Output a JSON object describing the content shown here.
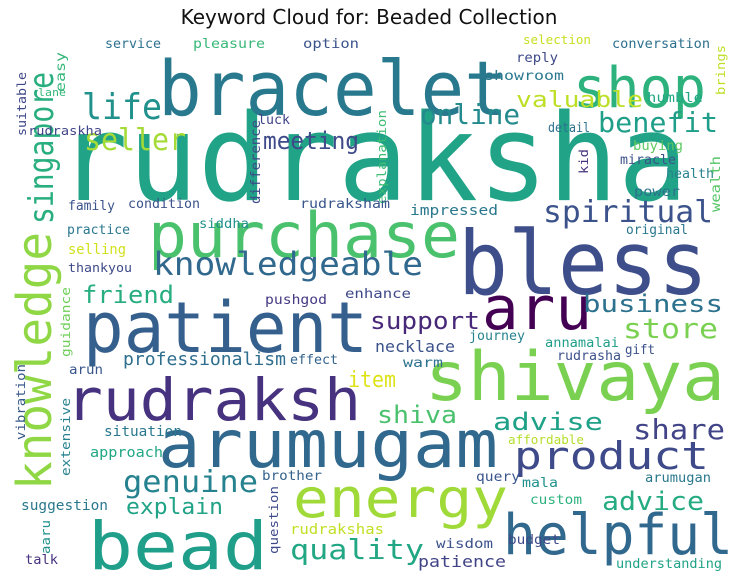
{
  "title": "Keyword Cloud for: Beaded Collection",
  "words": [
    {
      "text": "rudraksha",
      "color": "#20a386"
    },
    {
      "text": "bracelet",
      "color": "#29798e"
    },
    {
      "text": "shop",
      "color": "#2db27d"
    },
    {
      "text": "life",
      "color": "#21918c"
    },
    {
      "text": "seller",
      "color": "#a5db36"
    },
    {
      "text": "meeting",
      "color": "#3e4a89"
    },
    {
      "text": "online",
      "color": "#238a8d"
    },
    {
      "text": "valuable",
      "color": "#bddf26"
    },
    {
      "text": "benefit",
      "color": "#1f9e89"
    },
    {
      "text": "singapore",
      "color": "#29af7f"
    },
    {
      "text": "purchase",
      "color": "#4ac16d"
    },
    {
      "text": "spiritual",
      "color": "#3b528b"
    },
    {
      "text": "bless",
      "color": "#3d4e8a"
    },
    {
      "text": "knowledge",
      "color": "#8fd744"
    },
    {
      "text": "knowledgeable",
      "color": "#31688e"
    },
    {
      "text": "aru",
      "color": "#440154"
    },
    {
      "text": "business",
      "color": "#2c728e"
    },
    {
      "text": "patient",
      "color": "#355f8d"
    },
    {
      "text": "friend",
      "color": "#27ad81"
    },
    {
      "text": "support",
      "color": "#482878"
    },
    {
      "text": "store",
      "color": "#7ad151"
    },
    {
      "text": "shivaya",
      "color": "#7ad151"
    },
    {
      "text": "professionalism",
      "color": "#2e6e8e"
    },
    {
      "text": "rudraksh",
      "color": "#46327e"
    },
    {
      "text": "item",
      "color": "#dde318"
    },
    {
      "text": "shiva",
      "color": "#4ac16d"
    },
    {
      "text": "advise",
      "color": "#1fa188"
    },
    {
      "text": "share",
      "color": "#414487"
    },
    {
      "text": "arumugam",
      "color": "#31688e"
    },
    {
      "text": "product",
      "color": "#3e4a89"
    },
    {
      "text": "genuine",
      "color": "#26828e"
    },
    {
      "text": "explain",
      "color": "#20a386"
    },
    {
      "text": "energy",
      "color": "#a0da39"
    },
    {
      "text": "advice",
      "color": "#25ab82"
    },
    {
      "text": "bead",
      "color": "#1f9e89"
    },
    {
      "text": "quality",
      "color": "#22a785"
    },
    {
      "text": "helpful",
      "color": "#31688e"
    },
    {
      "text": "service",
      "color": "#2c728e"
    },
    {
      "text": "pleasure",
      "color": "#37b878"
    },
    {
      "text": "option",
      "color": "#3b528b"
    },
    {
      "text": "selection",
      "color": "#c8e020"
    },
    {
      "text": "conversation",
      "color": "#2d708e"
    },
    {
      "text": "easy",
      "color": "#35b779"
    },
    {
      "text": "brings",
      "color": "#bddf26"
    },
    {
      "text": "reply",
      "color": "#3e4a89"
    },
    {
      "text": "showroom",
      "color": "#2a788e"
    },
    {
      "text": "humble",
      "color": "#22a785"
    },
    {
      "text": "lane",
      "color": "#35b779"
    },
    {
      "text": "suitable",
      "color": "#3f4788"
    },
    {
      "text": "rudraskha",
      "color": "#414487"
    },
    {
      "text": "luck",
      "color": "#414487"
    },
    {
      "text": "detail",
      "color": "#2c728e"
    },
    {
      "text": "kid",
      "color": "#46327e"
    },
    {
      "text": "buying",
      "color": "#5ec962"
    },
    {
      "text": "miracle",
      "color": "#3b528b"
    },
    {
      "text": "health",
      "color": "#26828e"
    },
    {
      "text": "power",
      "color": "#2c728e"
    },
    {
      "text": "difference",
      "color": "#3e4a89"
    },
    {
      "text": "explanation",
      "color": "#3dbc74"
    },
    {
      "text": "wealth",
      "color": "#56c667"
    },
    {
      "text": "family",
      "color": "#3a548c"
    },
    {
      "text": "condition",
      "color": "#3b528b"
    },
    {
      "text": "rudraksham",
      "color": "#39558c"
    },
    {
      "text": "impressed",
      "color": "#2a788e"
    },
    {
      "text": "original",
      "color": "#2a788e"
    },
    {
      "text": "practice",
      "color": "#2a788e"
    },
    {
      "text": "selling",
      "color": "#d0e11c"
    },
    {
      "text": "siddha",
      "color": "#21918c"
    },
    {
      "text": "thankyou",
      "color": "#3e4a89"
    },
    {
      "text": "pushgod",
      "color": "#443983"
    },
    {
      "text": "enhance",
      "color": "#3e4989"
    },
    {
      "text": "guidance",
      "color": "#6ece58"
    },
    {
      "text": "journey",
      "color": "#26828e"
    },
    {
      "text": "annamalai",
      "color": "#1f9e89"
    },
    {
      "text": "gift",
      "color": "#3b528b"
    },
    {
      "text": "effect",
      "color": "#33638d"
    },
    {
      "text": "necklace",
      "color": "#3b528b"
    },
    {
      "text": "rudrasha",
      "color": "#3b528b"
    },
    {
      "text": "warm",
      "color": "#2c728e"
    },
    {
      "text": "arun",
      "color": "#39568c"
    },
    {
      "text": "vibration",
      "color": "#38598c"
    },
    {
      "text": "extensive",
      "color": "#26828e"
    },
    {
      "text": "situation",
      "color": "#2a788e"
    },
    {
      "text": "approach",
      "color": "#22a785"
    },
    {
      "text": "affordable",
      "color": "#b5de2b"
    },
    {
      "text": "suggestion",
      "color": "#2a788e"
    },
    {
      "text": "brother",
      "color": "#33638d"
    },
    {
      "text": "query",
      "color": "#39558c"
    },
    {
      "text": "arumugan",
      "color": "#2a788e"
    },
    {
      "text": "mala",
      "color": "#21918c"
    },
    {
      "text": "custom",
      "color": "#2db27d"
    },
    {
      "text": "question",
      "color": "#3e4989"
    },
    {
      "text": "budget",
      "color": "#3e4989"
    },
    {
      "text": "aaru",
      "color": "#21918c"
    },
    {
      "text": "rudrakshas",
      "color": "#c2df23"
    },
    {
      "text": "wisdom",
      "color": "#3b528b"
    },
    {
      "text": "talk",
      "color": "#46327e"
    },
    {
      "text": "patience",
      "color": "#414487"
    },
    {
      "text": "understanding",
      "color": "#20a386"
    }
  ]
}
